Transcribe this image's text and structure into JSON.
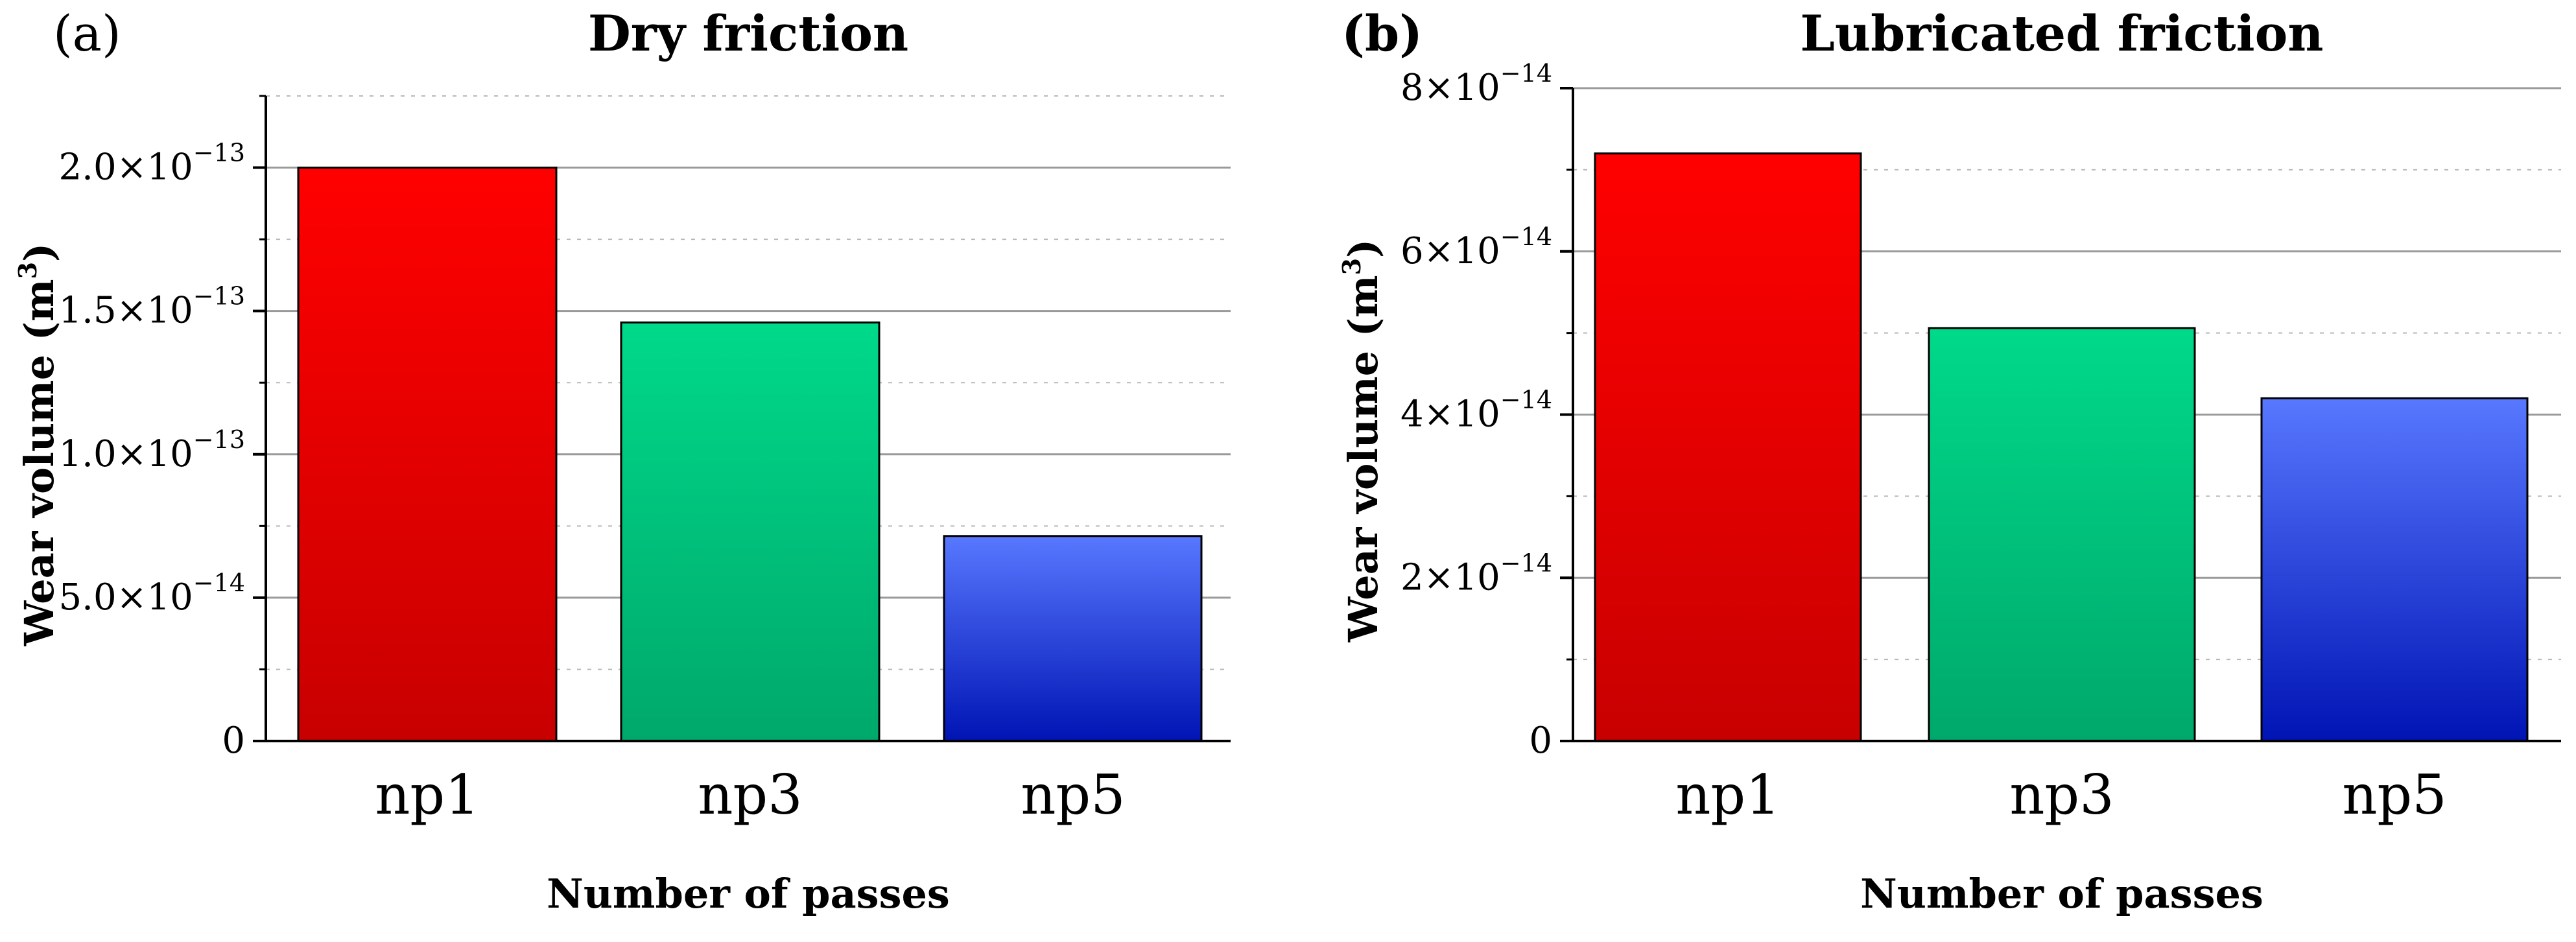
{
  "chart_data": [
    {
      "type": "bar",
      "panel_label": "(a)",
      "title": "Dry friction",
      "xlabel": "Number of passes",
      "ylabel": "Wear volume (m3)",
      "ylabel_parts": {
        "main": "Wear volume (m",
        "sup": "3",
        "end": ")"
      },
      "categories": [
        "np1",
        "np3",
        "np5"
      ],
      "values": [
        2e-13,
        1.46e-13,
        7.15e-14
      ],
      "ylim": [
        0,
        2.25e-13
      ],
      "ticks": [
        {
          "value": 0,
          "mant": "0",
          "exp": ""
        },
        {
          "value": 5e-14,
          "mant": "5.0×10",
          "exp": "−14"
        },
        {
          "value": 1e-13,
          "mant": "1.0×10",
          "exp": "−13"
        },
        {
          "value": 1.5e-13,
          "mant": "1.5×10",
          "exp": "−13"
        },
        {
          "value": 2e-13,
          "mant": "2.0×10",
          "exp": "−13"
        }
      ],
      "minor_step": 2.5e-14,
      "grid": true,
      "bar_colors": [
        {
          "top": "#ff0000",
          "bottom": "#c80000"
        },
        {
          "top": "#00d98a",
          "bottom": "#00a86b"
        },
        {
          "top": "#5878ff",
          "bottom": "#0014b4"
        }
      ]
    },
    {
      "type": "bar",
      "panel_label": "(b)",
      "title": "Lubricated friction",
      "xlabel": "Number of passes",
      "ylabel": "Wear volume (m3)",
      "ylabel_parts": {
        "main": "Wear volume (m",
        "sup": "3",
        "end": ")"
      },
      "categories": [
        "np1",
        "np3",
        "np5"
      ],
      "values": [
        7.2e-14,
        5.06e-14,
        4.2e-14
      ],
      "ylim": [
        0,
        8e-14
      ],
      "ticks": [
        {
          "value": 0,
          "mant": "0",
          "exp": ""
        },
        {
          "value": 2e-14,
          "mant": "2×10",
          "exp": "−14"
        },
        {
          "value": 4e-14,
          "mant": "4×10",
          "exp": "−14"
        },
        {
          "value": 6e-14,
          "mant": "6×10",
          "exp": "−14"
        },
        {
          "value": 8e-14,
          "mant": "8×10",
          "exp": "−14"
        }
      ],
      "minor_step": 1e-14,
      "grid": true,
      "bar_colors": [
        {
          "top": "#ff0000",
          "bottom": "#c80000"
        },
        {
          "top": "#00d98a",
          "bottom": "#00a86b"
        },
        {
          "top": "#5878ff",
          "bottom": "#0014b4"
        }
      ]
    }
  ]
}
